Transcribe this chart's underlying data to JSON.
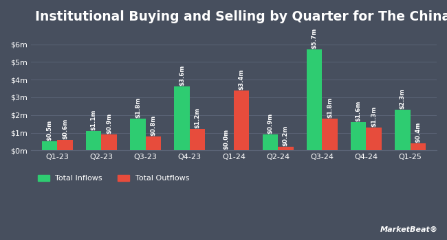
{
  "title": "Institutional Buying and Selling by Quarter for The China Fund",
  "quarters": [
    "Q1-23",
    "Q2-23",
    "Q3-23",
    "Q4-23",
    "Q1-24",
    "Q2-24",
    "Q3-24",
    "Q4-24",
    "Q1-25"
  ],
  "inflows": [
    0.5,
    1.1,
    1.8,
    3.6,
    0.0,
    0.9,
    5.7,
    1.6,
    2.3
  ],
  "outflows": [
    0.6,
    0.9,
    0.8,
    1.2,
    3.4,
    0.2,
    1.8,
    1.3,
    0.4
  ],
  "inflow_labels": [
    "$0.5m",
    "$1.1m",
    "$1.8m",
    "$3.6m",
    "$0.0m",
    "$0.9m",
    "$5.7m",
    "$1.6m",
    "$2.3m"
  ],
  "outflow_labels": [
    "$0.6m",
    "$0.9m",
    "$0.8m",
    "$1.2m",
    "$3.4m",
    "$0.2m",
    "$1.8m",
    "$1.3m",
    "$0.4m"
  ],
  "inflow_color": "#2ecc71",
  "outflow_color": "#e74c3c",
  "background_color": "#474f5e",
  "text_color": "#ffffff",
  "grid_color": "#5a6375",
  "ylim": [
    0,
    6.8
  ],
  "yticks": [
    0,
    1,
    2,
    3,
    4,
    5,
    6
  ],
  "ytick_labels": [
    "$0m",
    "$1m",
    "$2m",
    "$3m",
    "$4m",
    "$5m",
    "$6m"
  ],
  "legend_inflow": "Total Inflows",
  "legend_outflow": "Total Outflows",
  "bar_width": 0.35,
  "title_fontsize": 13.5,
  "label_fontsize": 6.2,
  "tick_fontsize": 8,
  "legend_fontsize": 8,
  "marketbeat_text": "⫷MarketBeat®"
}
